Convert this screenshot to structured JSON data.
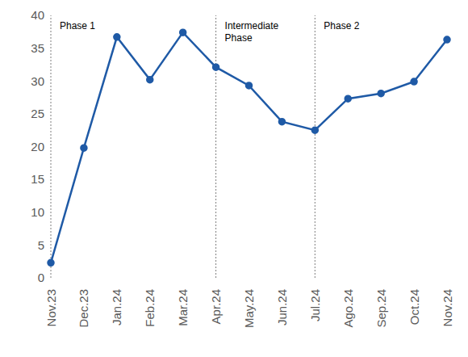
{
  "chart_data": {
    "type": "line",
    "categories": [
      "Nov.23",
      "Dec.23",
      "Jan.24",
      "Feb.24",
      "Mar.24",
      "Apr.24",
      "May.24",
      "Jun.24",
      "Jul.24",
      "Ago.24",
      "Sep.24",
      "Oct.24",
      "Nov.24"
    ],
    "values": [
      2.3,
      19.8,
      36.7,
      30.2,
      37.4,
      32.1,
      29.3,
      23.8,
      22.5,
      27.3,
      28.1,
      29.9,
      36.3
    ],
    "color": "#1f5aa6",
    "marker": "circle",
    "line_style": "solid",
    "ylim": [
      0,
      40
    ],
    "yticks": [
      0,
      5,
      10,
      15,
      20,
      25,
      30,
      35,
      40
    ],
    "grid": false,
    "annotations": [
      {
        "x": "Nov.23",
        "text": "Phase 1"
      },
      {
        "x": "Apr.24",
        "text": "Intermediate Phase"
      },
      {
        "x": "Jul.24",
        "text": "Phase 2"
      }
    ]
  }
}
